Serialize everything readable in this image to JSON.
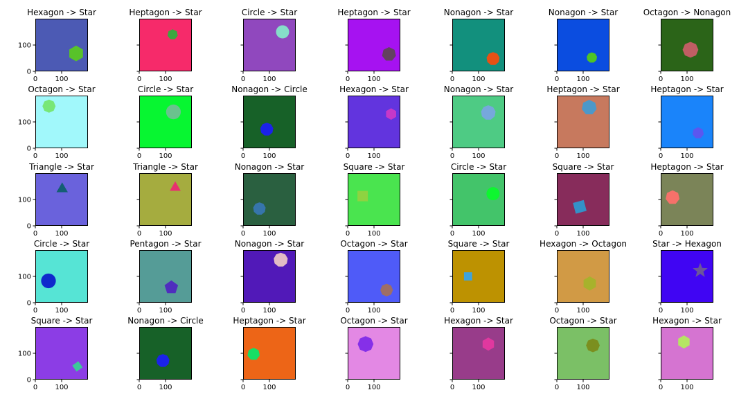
{
  "chart_data": {
    "type": "scatter",
    "xlim": [
      0,
      200
    ],
    "ylim": [
      200,
      0
    ],
    "xticks": [
      0,
      100
    ],
    "yticks": [
      0,
      100
    ],
    "panels": [
      {
        "title": "Hexagon -> Star",
        "bg": "#4C5AB4",
        "shape": "hexagon",
        "color": "#58C22A",
        "cx": 155,
        "cy": 68,
        "r": 30,
        "rot": 0
      },
      {
        "title": "Heptagon -> Star",
        "bg": "#F62A6A",
        "shape": "heptagon",
        "color": "#3BA83F",
        "cx": 127,
        "cy": 140,
        "r": 20,
        "rot": 0
      },
      {
        "title": "Circle -> Star",
        "bg": "#9048BE",
        "shape": "circle",
        "color": "#86DDC9",
        "cx": 150,
        "cy": 150,
        "r": 25,
        "rot": 0
      },
      {
        "title": "Heptagon -> Star",
        "bg": "#A612F1",
        "shape": "heptagon",
        "color": "#63415F",
        "cx": 157,
        "cy": 65,
        "r": 27,
        "rot": 0
      },
      {
        "title": "Nonagon -> Star",
        "bg": "#12907D",
        "shape": "nonagon",
        "color": "#E65115",
        "cx": 155,
        "cy": 48,
        "r": 25,
        "rot": 0
      },
      {
        "title": "Nonagon -> Star",
        "bg": "#0B4DE0",
        "shape": "nonagon",
        "color": "#4FC425",
        "cx": 133,
        "cy": 52,
        "r": 20,
        "rot": 0
      },
      {
        "title": "Octagon -> Nonagon",
        "bg": "#2B6418",
        "shape": "octagon",
        "color": "#C05E63",
        "cx": 113,
        "cy": 82,
        "r": 30,
        "rot": 0
      },
      {
        "title": "Octagon -> Star",
        "bg": "#A1F8FB",
        "shape": "octagon",
        "color": "#78E777",
        "cx": 52,
        "cy": 160,
        "r": 25,
        "rot": 0
      },
      {
        "title": "Circle -> Star",
        "bg": "#07F631",
        "shape": "circle",
        "color": "#6AC28E",
        "cx": 130,
        "cy": 138,
        "r": 28,
        "rot": 0
      },
      {
        "title": "Nonagon -> Circle",
        "bg": "#176128",
        "shape": "nonagon",
        "color": "#1B22E9",
        "cx": 90,
        "cy": 72,
        "r": 25,
        "rot": 0
      },
      {
        "title": "Hexagon -> Star",
        "bg": "#6234DE",
        "shape": "hexagon",
        "color": "#C638C8",
        "cx": 165,
        "cy": 130,
        "r": 22,
        "rot": 0
      },
      {
        "title": "Nonagon -> Star",
        "bg": "#4ECB84",
        "shape": "nonagon",
        "color": "#76A8DC",
        "cx": 137,
        "cy": 135,
        "r": 28,
        "rot": 0
      },
      {
        "title": "Heptagon -> Star",
        "bg": "#C7795E",
        "shape": "heptagon",
        "color": "#4C98C9",
        "cx": 123,
        "cy": 155,
        "r": 29,
        "rot": 0
      },
      {
        "title": "Heptagon -> Star",
        "bg": "#1A84FA",
        "shape": "heptagon",
        "color": "#5B57EF",
        "cx": 142,
        "cy": 58,
        "r": 22,
        "rot": 0
      },
      {
        "title": "Triangle -> Star",
        "bg": "#6A62DC",
        "shape": "triangle",
        "color": "#145E74",
        "cx": 102,
        "cy": 140,
        "r": 25,
        "rot": 0
      },
      {
        "title": "Triangle -> Star",
        "bg": "#A5AC3F",
        "shape": "triangle",
        "color": "#E7326F",
        "cx": 137,
        "cy": 145,
        "r": 24,
        "rot": 0
      },
      {
        "title": "Nonagon -> Star",
        "bg": "#2A6040",
        "shape": "nonagon",
        "color": "#3675AB",
        "cx": 62,
        "cy": 65,
        "r": 24,
        "rot": 0
      },
      {
        "title": "Square -> Star",
        "bg": "#4AE44F",
        "shape": "square",
        "color": "#8ED341",
        "cx": 57,
        "cy": 113,
        "r": 28,
        "rot": 45
      },
      {
        "title": "Circle -> Star",
        "bg": "#43C46A",
        "shape": "circle",
        "color": "#0EF630",
        "cx": 155,
        "cy": 122,
        "r": 25,
        "rot": 0
      },
      {
        "title": "Square -> Star",
        "bg": "#872C5B",
        "shape": "square",
        "color": "#3391C8",
        "cx": 87,
        "cy": 72,
        "r": 30,
        "rot": 30
      },
      {
        "title": "Heptagon -> Star",
        "bg": "#7B8458",
        "shape": "heptagon",
        "color": "#F6716A",
        "cx": 45,
        "cy": 108,
        "r": 27,
        "rot": 0
      },
      {
        "title": "Circle -> Star",
        "bg": "#56E4D5",
        "shape": "circle",
        "color": "#0F29CC",
        "cx": 50,
        "cy": 83,
        "r": 28,
        "rot": 0
      },
      {
        "title": "Pentagon -> Star",
        "bg": "#559C97",
        "shape": "pentagon",
        "color": "#4F2EBE",
        "cx": 122,
        "cy": 58,
        "r": 27,
        "rot": 0
      },
      {
        "title": "Nonagon -> Star",
        "bg": "#5119B8",
        "shape": "nonagon",
        "color": "#E2BCC5",
        "cx": 143,
        "cy": 163,
        "r": 27,
        "rot": 0
      },
      {
        "title": "Octagon -> Star",
        "bg": "#4F5BF8",
        "shape": "octagon",
        "color": "#9E6E66",
        "cx": 148,
        "cy": 48,
        "r": 24,
        "rot": 0
      },
      {
        "title": "Square -> Star",
        "bg": "#BD9201",
        "shape": "square",
        "color": "#3EA3DD",
        "cx": 60,
        "cy": 100,
        "r": 22,
        "rot": 45
      },
      {
        "title": "Hexagon -> Octagon",
        "bg": "#D19A45",
        "shape": "hexagon",
        "color": "#A7B22C",
        "cx": 125,
        "cy": 73,
        "r": 27,
        "rot": 0
      },
      {
        "title": "Star -> Hexagon",
        "bg": "#4005F3",
        "shape": "star",
        "color": "#6C569A",
        "cx": 150,
        "cy": 122,
        "r": 30,
        "rot": 0
      },
      {
        "title": "Square -> Star",
        "bg": "#8C3DE5",
        "shape": "square",
        "color": "#3CC899",
        "cx": 160,
        "cy": 50,
        "r": 20,
        "rot": 10
      },
      {
        "title": "Nonagon -> Circle",
        "bg": "#176128",
        "shape": "nonagon",
        "color": "#1B22E9",
        "cx": 90,
        "cy": 72,
        "r": 25,
        "rot": 0
      },
      {
        "title": "Heptagon -> Star",
        "bg": "#ED6517",
        "shape": "heptagon",
        "color": "#17DE65",
        "cx": 40,
        "cy": 97,
        "r": 24,
        "rot": 0
      },
      {
        "title": "Octagon -> Star",
        "bg": "#E388E4",
        "shape": "octagon",
        "color": "#8530E8",
        "cx": 68,
        "cy": 135,
        "r": 30,
        "rot": 0
      },
      {
        "title": "Hexagon -> Star",
        "bg": "#983C8A",
        "shape": "hexagon",
        "color": "#E0389F",
        "cx": 137,
        "cy": 135,
        "r": 25,
        "rot": 0
      },
      {
        "title": "Octagon -> Star",
        "bg": "#7BC066",
        "shape": "octagon",
        "color": "#7B8F1F",
        "cx": 137,
        "cy": 130,
        "r": 26,
        "rot": 0
      },
      {
        "title": "Hexagon -> Star",
        "bg": "#D574D1",
        "shape": "hexagon",
        "color": "#B5E563",
        "cx": 88,
        "cy": 143,
        "r": 25,
        "rot": 0
      }
    ]
  }
}
